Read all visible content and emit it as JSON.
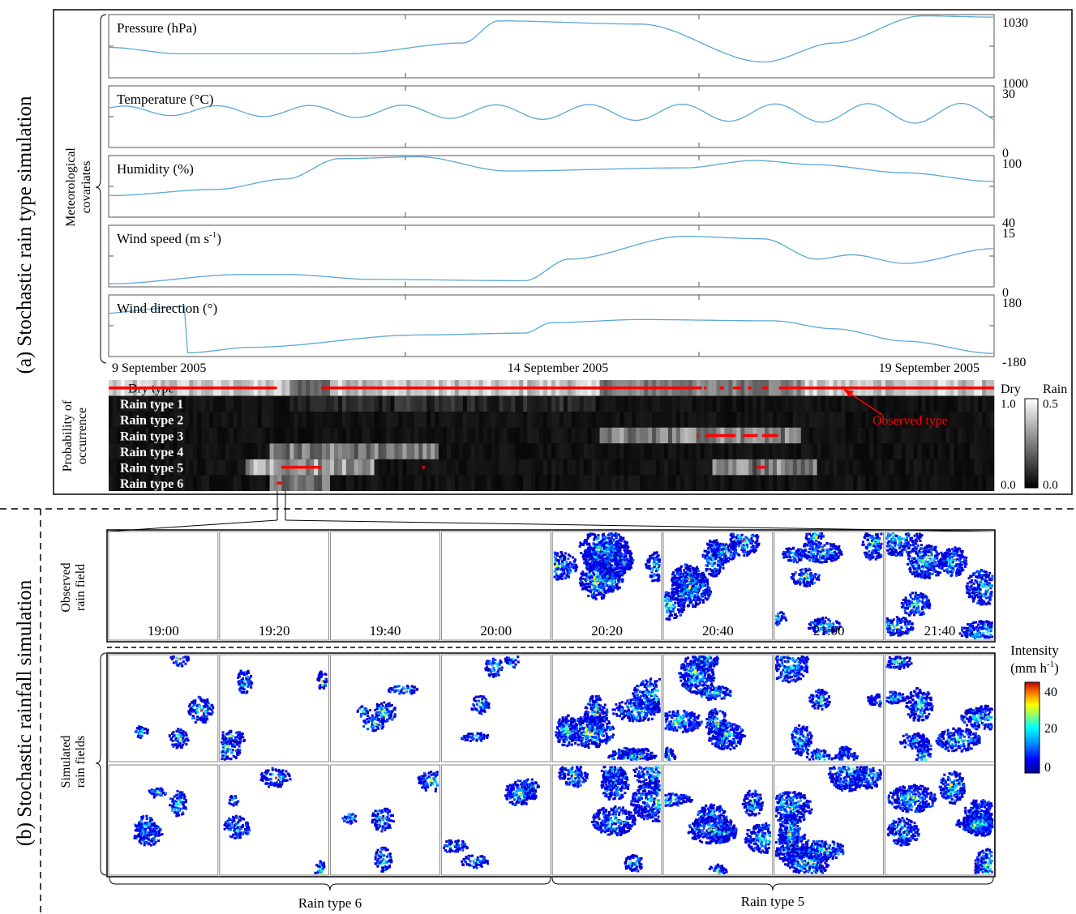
{
  "section_a": {
    "title": "(a) Stochastic rain type simulation",
    "covariates_label": [
      "Meteorological",
      "covariates"
    ],
    "panels": [
      {
        "label": "Pressure (hPa)",
        "ytop": "1030",
        "ybot": "1000"
      },
      {
        "label": "Temperature (°C)",
        "ytop": "30",
        "ybot": "0"
      },
      {
        "label": "Humidity (%)",
        "ytop": "100",
        "ybot": "40"
      },
      {
        "label": "Wind speed (m s",
        "label_sup": "-1",
        "label_end": ")",
        "ytop": "15",
        "ybot": "0"
      },
      {
        "label": "Wind direction (°)",
        "ytop": "180",
        "ybot": "-180"
      }
    ],
    "dates": [
      "9 September 2005",
      "14 September 2005",
      "19 September 2005"
    ],
    "probability_label": [
      "Probability of",
      "occurrence"
    ],
    "types": [
      "Dry type",
      "Rain type 1",
      "Rain type 2",
      "Rain type 3",
      "Rain type 4",
      "Rain type 5",
      "Rain type 6"
    ],
    "colorbar": {
      "dry": "Dry",
      "rain": "Rain",
      "dry_max": "1.0",
      "dry_min": "0.0",
      "rain_max": "0.5",
      "rain_min": "0.0"
    },
    "observed_label": "Observed type",
    "observed_color": "#ff0000",
    "line_color": "#5ba8d6"
  },
  "section_b": {
    "title": "(b) Stochastic rainfall simulation",
    "observed_label": [
      "Observed",
      "rain field"
    ],
    "simulated_label": [
      "Simulated",
      "rain fields"
    ],
    "times": [
      "19:00",
      "19:20",
      "19:40",
      "20:00",
      "20:20",
      "20:40",
      "21:00",
      "21:40"
    ],
    "groups": [
      "Rain type 6",
      "Rain type 5"
    ],
    "intensity": {
      "title": "Intensity",
      "unit_pre": "(mm h",
      "unit_sup": "-1",
      "unit_post": ")",
      "ticks": [
        "40",
        "20",
        "0"
      ]
    }
  }
}
